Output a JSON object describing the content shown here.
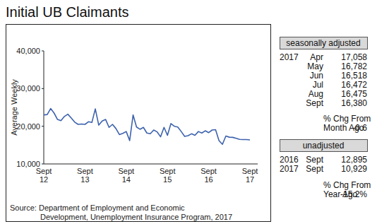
{
  "chart_data": {
    "type": "line",
    "title": "Initial UB Claimants",
    "y_label": "Average Weekly",
    "categories": [
      "Sept 12",
      null,
      null,
      null,
      null,
      null,
      null,
      null,
      null,
      null,
      null,
      null,
      "Sept 13",
      null,
      null,
      null,
      null,
      null,
      null,
      null,
      null,
      null,
      null,
      null,
      "Sept 14",
      null,
      null,
      null,
      null,
      null,
      null,
      null,
      null,
      null,
      null,
      null,
      "Sept 15",
      null,
      null,
      null,
      null,
      null,
      null,
      null,
      null,
      null,
      null,
      null,
      "Sept 16",
      null,
      null,
      null,
      null,
      null,
      null,
      null,
      null,
      null,
      null,
      null,
      "Sept 17"
    ],
    "values": [
      23000,
      23100,
      24700,
      23500,
      21800,
      21500,
      22600,
      23200,
      22200,
      21100,
      20500,
      20600,
      20500,
      21200,
      21000,
      24600,
      20300,
      21400,
      21800,
      19700,
      20500,
      19400,
      17800,
      18100,
      18600,
      16200,
      23000,
      19800,
      19200,
      19700,
      18200,
      18000,
      19000,
      18500,
      17200,
      19700,
      17600,
      20700,
      20000,
      19800,
      18600,
      17300,
      17500,
      18000,
      17600,
      18600,
      18200,
      18800,
      18300,
      19000,
      19100,
      16200,
      15200,
      17400,
      17100,
      17058,
      16782,
      16518,
      16472,
      16475,
      16380
    ],
    "color": "#3d62ad",
    "ylim": [
      10000,
      40000
    ],
    "yticks": [
      {
        "value": 10000,
        "label": "10,000"
      },
      {
        "value": 20000,
        "label": "20,000"
      },
      {
        "value": 30000,
        "label": "30,000"
      },
      {
        "value": 40000,
        "label": "40,000"
      }
    ],
    "grid": false,
    "source": [
      "Source:  Department of Employment and Economic",
      "Development, Unemployment Insurance Program, 2017"
    ]
  },
  "panel": {
    "seasonal_header": "seasonally adjusted",
    "seasonal_rows": [
      {
        "year": "2017",
        "month": "Apr",
        "value": "17,058"
      },
      {
        "month": "May",
        "value": "16,782"
      },
      {
        "month": "Jun",
        "value": "16,518"
      },
      {
        "month": "Jul",
        "value": "16,472"
      },
      {
        "month": "Aug",
        "value": "16,475"
      },
      {
        "month": "Sept",
        "value": "16,380"
      }
    ],
    "month_change": {
      "line_1": "% Chg From",
      "line_2": "Month Ago",
      "value": "-0.6"
    },
    "unadjusted_header": "unadjusted",
    "unadjusted_rows": [
      {
        "year": "2016",
        "month": "Sept",
        "value": "12,895"
      },
      {
        "year": "2017",
        "month": "Sept",
        "value": "10,929"
      }
    ],
    "year_change": {
      "line_1": "% Chg From",
      "line_2": "Year Ago",
      "value": "-15.2%"
    }
  }
}
